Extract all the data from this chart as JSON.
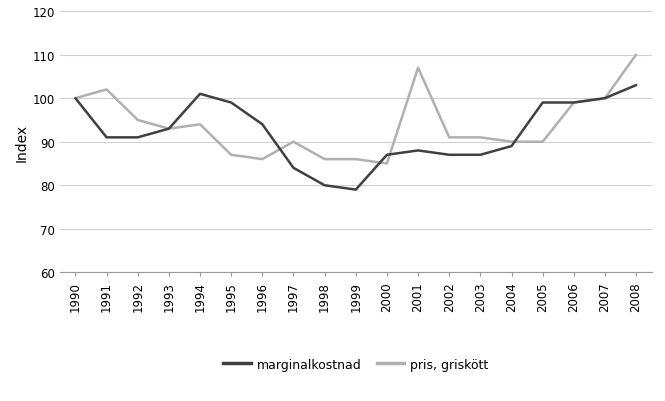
{
  "years": [
    1990,
    1991,
    1992,
    1993,
    1994,
    1995,
    1996,
    1997,
    1998,
    1999,
    2000,
    2001,
    2002,
    2003,
    2004,
    2005,
    2006,
    2007,
    2008
  ],
  "marginalkostnad": [
    100,
    91,
    91,
    93,
    101,
    99,
    94,
    84,
    80,
    79,
    87,
    88,
    87,
    87,
    89,
    99,
    99,
    100,
    103
  ],
  "pris_griskott": [
    100,
    102,
    95,
    93,
    94,
    87,
    86,
    90,
    86,
    86,
    85,
    107,
    91,
    91,
    90,
    90,
    99,
    100,
    110
  ],
  "line1_color": "#404040",
  "line2_color": "#b0b0b0",
  "line1_label": "marginalkostnad",
  "line2_label": "pris, griskött",
  "ylabel": "Index",
  "ylim": [
    60,
    120
  ],
  "yticks": [
    60,
    70,
    80,
    90,
    100,
    110,
    120
  ],
  "background_color": "#ffffff",
  "grid_color": "#d0d0d0",
  "line_width": 1.8,
  "legend_fontsize": 9,
  "tick_fontsize": 8.5
}
